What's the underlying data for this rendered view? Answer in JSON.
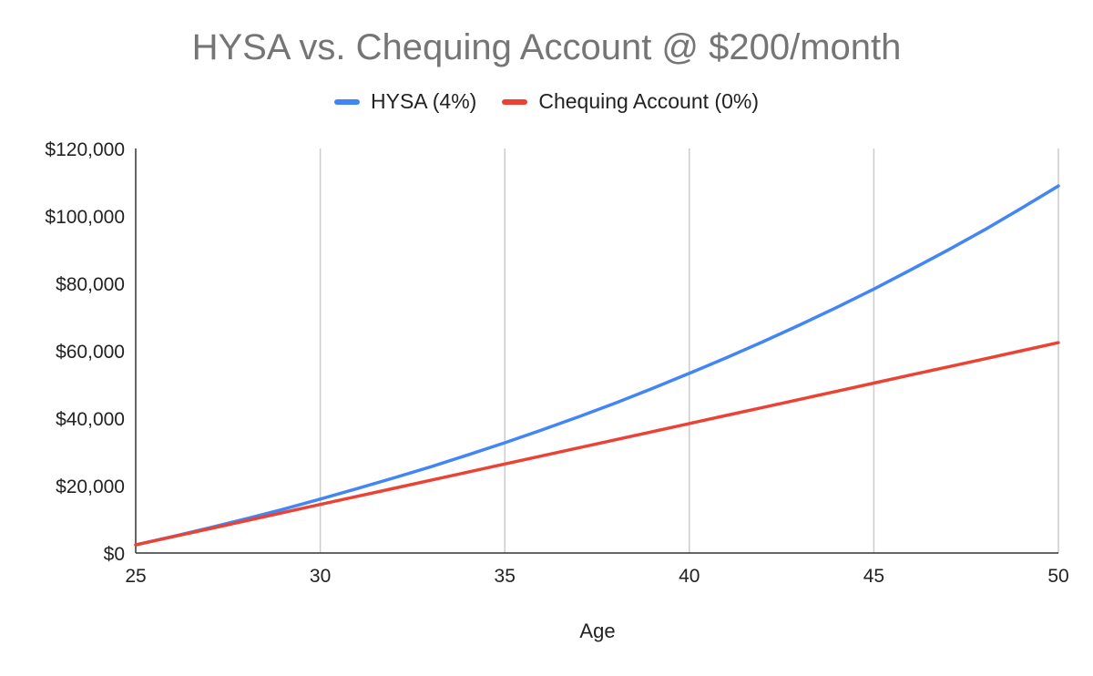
{
  "chart_data": {
    "type": "line",
    "title": "HYSA vs. Chequing Account @ $200/month",
    "xlabel": "Age",
    "ylabel": "",
    "xlim": [
      25,
      50
    ],
    "ylim": [
      0,
      120000
    ],
    "x_ticks": [
      25,
      30,
      35,
      40,
      45,
      50
    ],
    "y_ticks": [
      0,
      20000,
      40000,
      60000,
      80000,
      100000,
      120000
    ],
    "y_tick_labels": [
      "$0",
      "$20,000",
      "$40,000",
      "$60,000",
      "$80,000",
      "$100,000",
      "$120,000"
    ],
    "grid": "vertical",
    "legend_position": "top",
    "x": [
      25,
      26,
      27,
      28,
      29,
      30,
      31,
      32,
      33,
      34,
      35,
      36,
      37,
      38,
      39,
      40,
      41,
      42,
      43,
      44,
      45,
      46,
      47,
      48,
      49,
      50
    ],
    "series": [
      {
        "name": "HYSA (4%)",
        "color": "#4285f4",
        "values": [
          2400,
          4900,
          7500,
          10200,
          13000,
          16000,
          19100,
          22300,
          25600,
          29100,
          32700,
          36500,
          40400,
          44500,
          48800,
          53300,
          57900,
          62700,
          67700,
          72900,
          78300,
          84000,
          89800,
          95900,
          102300,
          108900
        ]
      },
      {
        "name": "Chequing Account (0%)",
        "color": "#ea4335",
        "values": [
          2400,
          4800,
          7200,
          9600,
          12000,
          14400,
          16800,
          19200,
          21600,
          24000,
          26400,
          28800,
          31200,
          33600,
          36000,
          38400,
          40800,
          43200,
          45600,
          48000,
          50400,
          52800,
          55200,
          57600,
          60000,
          62400
        ]
      }
    ]
  }
}
